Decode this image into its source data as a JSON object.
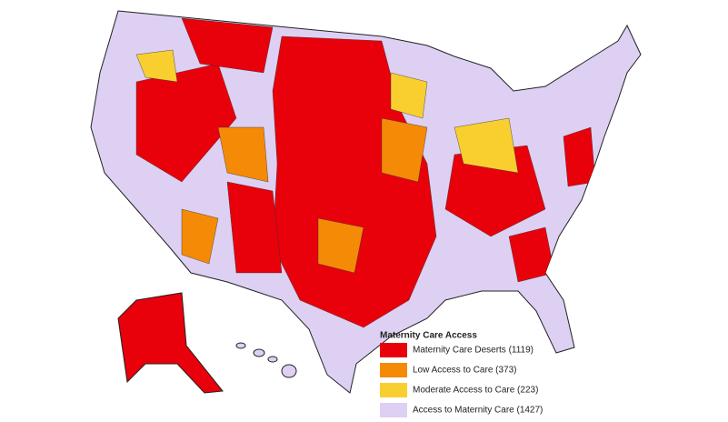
{
  "legend": {
    "title": "Maternity Care Access",
    "items": [
      {
        "label": "Maternity Care Deserts (1119)",
        "color": "#e8000b"
      },
      {
        "label": "Low Access to Care (373)",
        "color": "#f58a07"
      },
      {
        "label": "Moderate Access to Care (223)",
        "color": "#f8cf2f"
      },
      {
        "label": "Access to Maternity Care (1427)",
        "color": "#ddd0f3"
      }
    ]
  }
}
